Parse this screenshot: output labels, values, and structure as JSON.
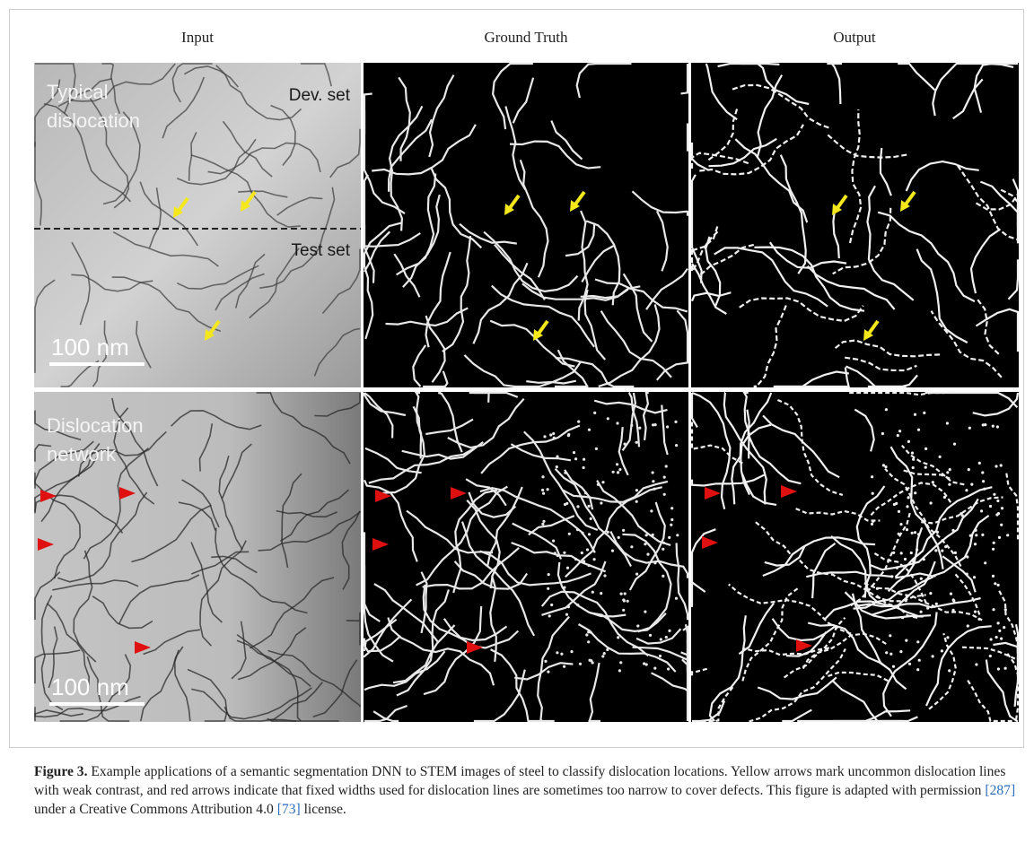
{
  "figure": {
    "column_headers": [
      "Input",
      "Ground Truth",
      "Output"
    ],
    "top_row": {
      "label_lines": [
        "Typical",
        "dislocation"
      ],
      "dev_label": "Dev. set",
      "test_label": "Test set",
      "scale_bar": "100 nm"
    },
    "bottom_row": {
      "label_lines": [
        "Dislocation",
        "network"
      ],
      "scale_bar": "100 nm"
    }
  },
  "caption": {
    "label": "Figure 3.",
    "text_1": " Example applications of a semantic segmentation DNN to STEM images of steel to classify dislocation locations. Yellow arrows mark uncommon dislocation lines with weak contrast, and red arrows indicate that fixed widths used for dislocation lines are sometimes too narrow to cover defects. This figure is adapted with permission ",
    "ref_1": "[287]",
    "text_2": " under a Creative Commons Attribution 4.0 ",
    "ref_2": "[73]",
    "text_3": " license."
  }
}
